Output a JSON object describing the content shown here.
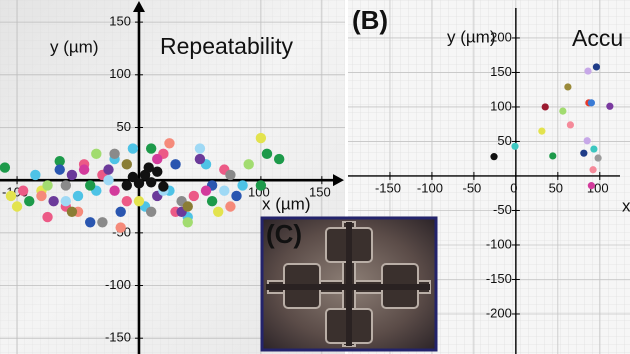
{
  "chart_data": [
    {
      "type": "scatter",
      "title": "Repeatability",
      "x_label": "x (µm)",
      "y_label": "y (µm)",
      "xlim": [
        -114,
        169
      ],
      "ylim": [
        -165,
        171
      ],
      "xticks": [
        -100,
        100,
        150
      ],
      "yticks": [
        -150,
        -100,
        -50,
        50,
        100,
        150
      ],
      "grid": true,
      "series": [
        {
          "color": "#ec5a86",
          "x": [
            -95,
            -60,
            -30,
            -10,
            20,
            45,
            70,
            -75,
            30,
            -45
          ],
          "y": [
            -10,
            -25,
            5,
            -20,
            25,
            -15,
            10,
            -35,
            -30,
            15
          ]
        },
        {
          "color": "#4ec3e6",
          "x": [
            -85,
            -50,
            -20,
            5,
            25,
            55,
            85,
            -35,
            40,
            -5
          ],
          "y": [
            5,
            -15,
            20,
            -25,
            -10,
            15,
            -5,
            -10,
            -35,
            30
          ]
        },
        {
          "color": "#1d9a4a",
          "x": [
            -110,
            -90,
            -40,
            10,
            60,
            105,
            115,
            100,
            -65
          ],
          "y": [
            12,
            -20,
            -5,
            30,
            -20,
            25,
            20,
            -5,
            18
          ]
        },
        {
          "color": "#6b3a9a",
          "x": [
            -70,
            -25,
            15,
            50,
            -55,
            35
          ],
          "y": [
            -20,
            10,
            -15,
            20,
            5,
            -30
          ]
        },
        {
          "color": "#2a56b0",
          "x": [
            -65,
            -15,
            30,
            60,
            -40,
            80
          ],
          "y": [
            10,
            -30,
            15,
            -5,
            -40,
            -15
          ]
        },
        {
          "color": "#e3e34e",
          "x": [
            -105,
            -100,
            -80,
            0,
            100,
            65
          ],
          "y": [
            -15,
            -25,
            -10,
            -20,
            40,
            -30
          ]
        },
        {
          "color": "#8a8a8a",
          "x": [
            -60,
            -20,
            35,
            75,
            -30,
            10
          ],
          "y": [
            -5,
            25,
            -20,
            5,
            -40,
            -30
          ]
        },
        {
          "color": "#f58a7a",
          "x": [
            -50,
            -15,
            25,
            75,
            -80
          ],
          "y": [
            -30,
            -45,
            35,
            -25,
            -15
          ]
        },
        {
          "color": "#a2dc70",
          "x": [
            -35,
            40,
            90,
            -75
          ],
          "y": [
            25,
            -40,
            15,
            -5
          ]
        },
        {
          "color": "#d33b9c",
          "x": [
            -20,
            15,
            55,
            -45
          ],
          "y": [
            -10,
            20,
            -10,
            10
          ]
        },
        {
          "color": "#9fd9f5",
          "x": [
            -25,
            20,
            50,
            -60,
            70
          ],
          "y": [
            0,
            -10,
            30,
            -20,
            -10
          ]
        },
        {
          "color": "#8a7d34",
          "x": [
            -10,
            40,
            -55
          ],
          "y": [
            15,
            -25,
            -30
          ]
        },
        {
          "color": "#111111",
          "x": [
            -5,
            0,
            5,
            10,
            15,
            -10,
            8,
            20
          ],
          "y": [
            3,
            -3,
            5,
            -2,
            8,
            -5,
            12,
            -6
          ]
        }
      ]
    },
    {
      "type": "scatter",
      "panel_label": "(B)",
      "title": "Accu",
      "x_label": "x",
      "y_label": "y (µm)",
      "xlim": [
        -200,
        136
      ],
      "ylim": [
        -258,
        255
      ],
      "xticks": [
        -150,
        -100,
        -50,
        0,
        50,
        100
      ],
      "yticks": [
        -200,
        -150,
        -100,
        -50,
        50,
        100,
        150,
        200
      ],
      "grid": true,
      "series": [
        {
          "color": "#111111",
          "x": [
            -26
          ],
          "y": [
            28
          ]
        },
        {
          "color": "#3cc7c0",
          "x": [
            -1,
            93
          ],
          "y": [
            43,
            39
          ]
        },
        {
          "color": "#1d9a4a",
          "x": [
            44
          ],
          "y": [
            29
          ]
        },
        {
          "color": "#e3e34e",
          "x": [
            31
          ],
          "y": [
            65
          ]
        },
        {
          "color": "#9b1b30",
          "x": [
            35
          ],
          "y": [
            100
          ]
        },
        {
          "color": "#9a8a3a",
          "x": [
            62
          ],
          "y": [
            129
          ]
        },
        {
          "color": "#a2dc70",
          "x": [
            56
          ],
          "y": [
            94
          ]
        },
        {
          "color": "#f58a9a",
          "x": [
            65,
            92
          ],
          "y": [
            74,
            9
          ]
        },
        {
          "color": "#1f3c88",
          "x": [
            96,
            81
          ],
          "y": [
            158,
            33
          ]
        },
        {
          "color": "#c7a8e8",
          "x": [
            86,
            85
          ],
          "y": [
            152,
            51
          ]
        },
        {
          "color": "#e83a2a",
          "x": [
            87
          ],
          "y": [
            106
          ]
        },
        {
          "color": "#3a7bd5",
          "x": [
            90
          ],
          "y": [
            106
          ]
        },
        {
          "color": "#7a3aa0",
          "x": [
            112
          ],
          "y": [
            101
          ]
        },
        {
          "color": "#9a9a9a",
          "x": [
            98
          ],
          "y": [
            26
          ]
        },
        {
          "color": "#d33b9c",
          "x": [
            90
          ],
          "y": [
            -14
          ]
        }
      ]
    }
  ],
  "inset": {
    "label": "(C)"
  }
}
